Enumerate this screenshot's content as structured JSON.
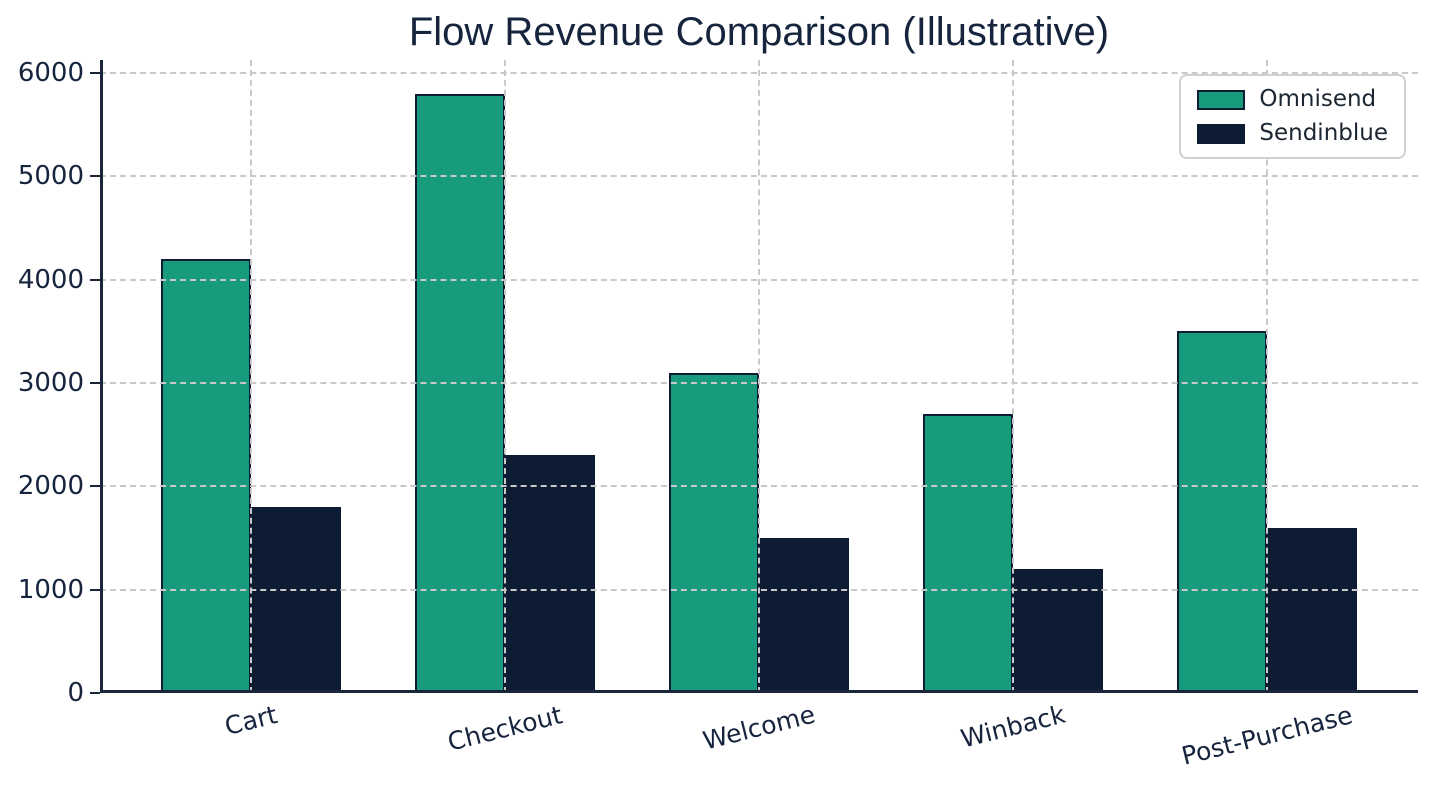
{
  "chart_data": {
    "type": "bar",
    "title": "Flow Revenue Comparison (Illustrative)",
    "categories": [
      "Cart",
      "Checkout",
      "Welcome",
      "Winback",
      "Post-Purchase"
    ],
    "series": [
      {
        "name": "Omnisend",
        "color": "#189a7c",
        "values": [
          4200,
          5800,
          3100,
          2700,
          3500
        ]
      },
      {
        "name": "Sendinblue",
        "color": "#0d1b33",
        "values": [
          1800,
          2300,
          1500,
          1200,
          1600
        ]
      }
    ],
    "xlabel": "",
    "ylabel": "",
    "ylim": [
      0,
      6000
    ],
    "yticks": [
      0,
      1000,
      2000,
      3000,
      4000,
      5000,
      6000
    ],
    "xtick_rotation_deg": 14,
    "legend_position": "upper-right",
    "grid": {
      "horizontal": true,
      "vertical": true,
      "style": "dashed",
      "drawn_above_bars": true
    },
    "bar_edge_color": "#0d1b33"
  },
  "colors": {
    "background": "#ffffff",
    "axis_text": "#16243d",
    "spine": "#1a2639",
    "gridline": "#c9c9c9",
    "legend_border": "#d0d0d0",
    "legend_background": "#ffffff",
    "omnisend_green": "#189a7c",
    "sendinblue_navy": "#0d1b33"
  }
}
